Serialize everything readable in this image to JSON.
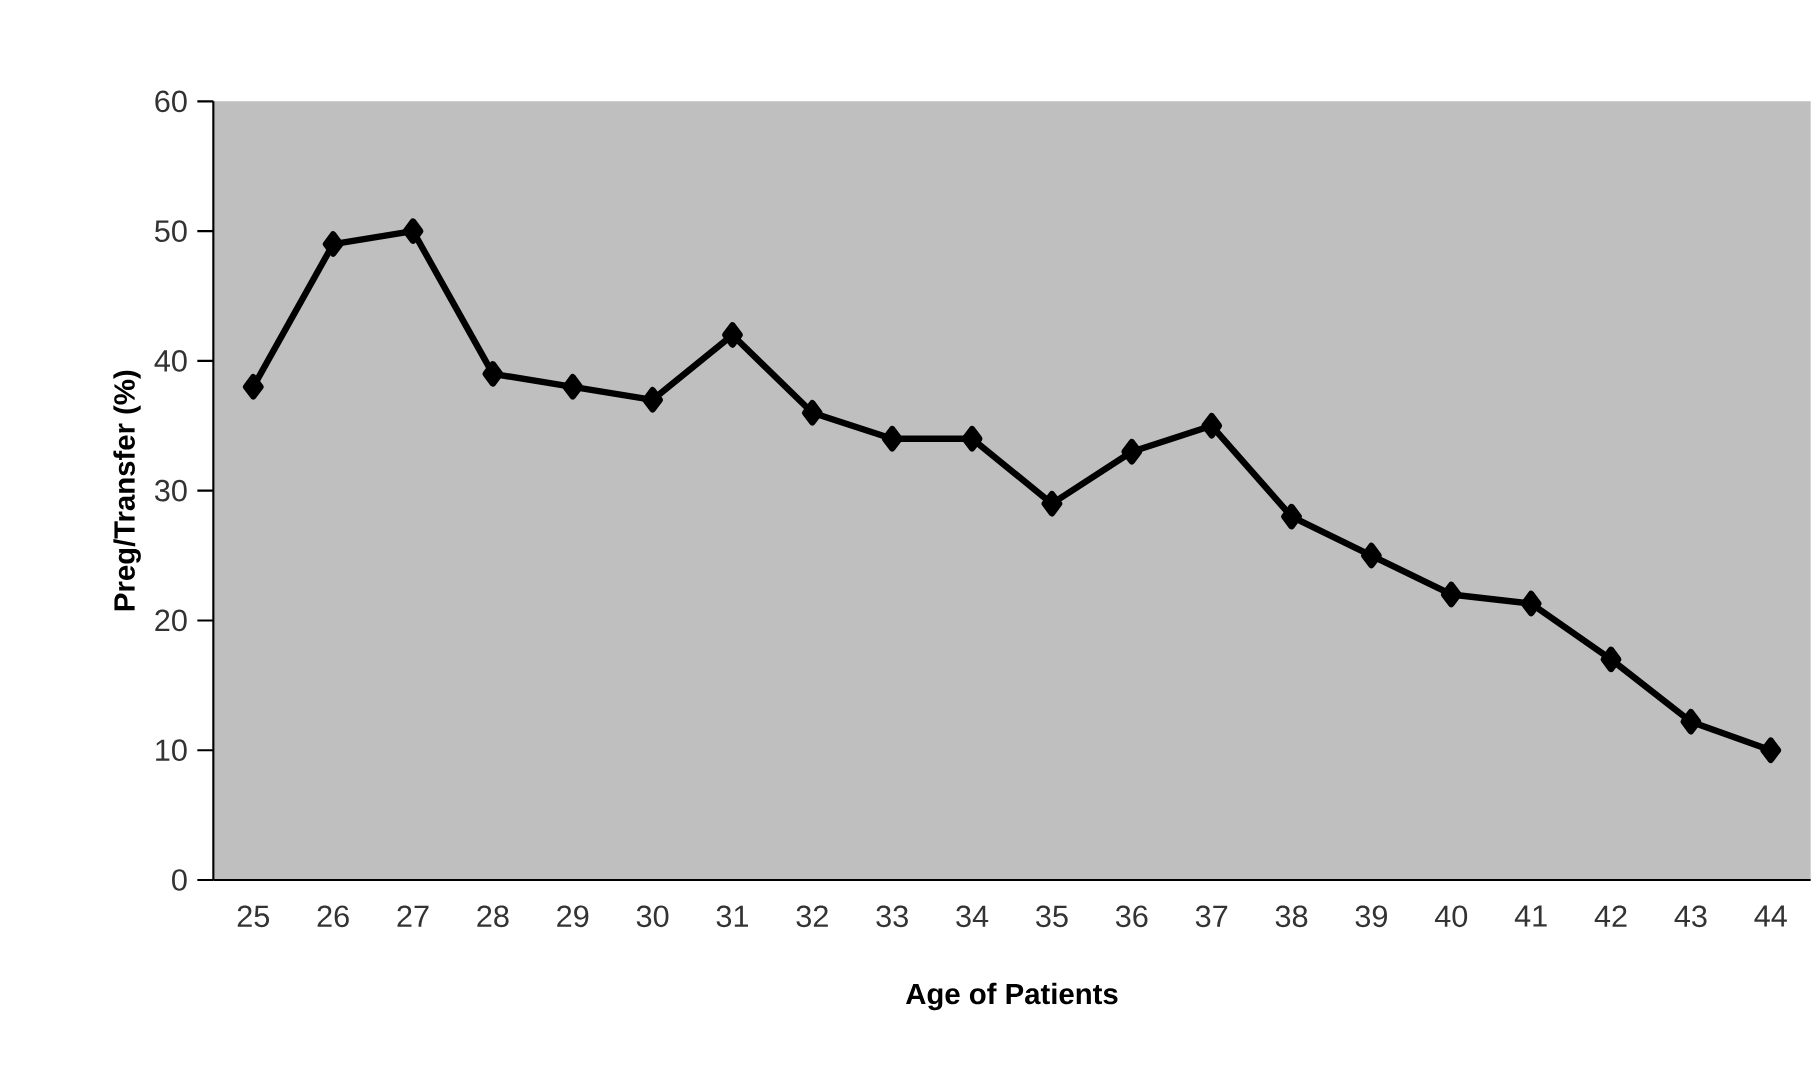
{
  "chart_data": {
    "type": "line",
    "xlabel": "Age of Patients",
    "ylabel": "Preg/Transfer (%)",
    "categories": [
      "25",
      "26",
      "27",
      "28",
      "29",
      "30",
      "31",
      "32",
      "33",
      "34",
      "35",
      "36",
      "37",
      "38",
      "39",
      "40",
      "41",
      "42",
      "43",
      "44"
    ],
    "series": [
      {
        "color": "#000000",
        "values": [
          38,
          49,
          50,
          39,
          38,
          37,
          42,
          36,
          34,
          34,
          29,
          33,
          35,
          28,
          25,
          22,
          21.3,
          17,
          12.2,
          10
        ]
      }
    ],
    "ylim": [
      0,
      60
    ],
    "yticks": [
      0,
      10,
      20,
      30,
      40,
      50,
      60
    ],
    "grid": false,
    "legend": false,
    "marker": "diamond",
    "line_style": "solid"
  }
}
